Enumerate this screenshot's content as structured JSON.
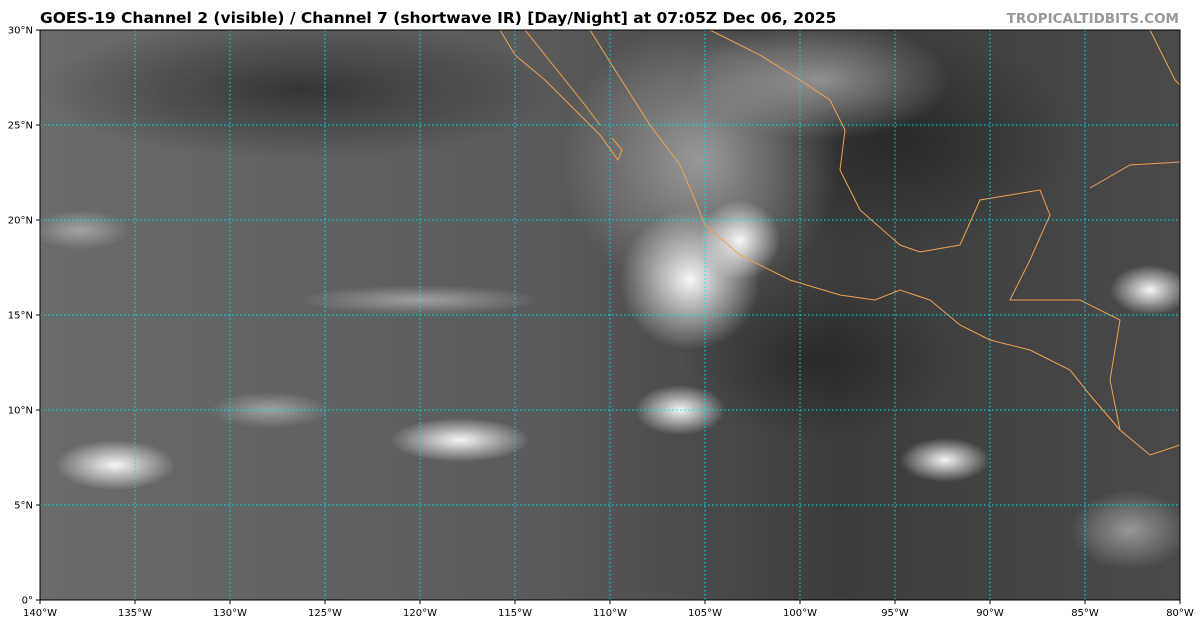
{
  "title": "GOES-19 Channel 2 (visible) / Channel 7 (shortwave IR) [Day/Night] at 07:05Z Dec 06, 2025",
  "brand": "TROPICALTIDBITS.COM",
  "map": {
    "lon_range": [
      -140,
      -80
    ],
    "lat_range": [
      0,
      30
    ],
    "grid_color": "#00e5e5",
    "coastline_color": "#f0a050",
    "lon_labels": [
      "140°W",
      "135°W",
      "130°W",
      "125°W",
      "120°W",
      "115°W",
      "110°W",
      "105°W",
      "100°W",
      "95°W",
      "90°W",
      "85°W",
      "80°W"
    ],
    "lat_labels": [
      "0°",
      "5°N",
      "10°N",
      "15°N",
      "20°N",
      "25°N",
      "30°N"
    ]
  }
}
